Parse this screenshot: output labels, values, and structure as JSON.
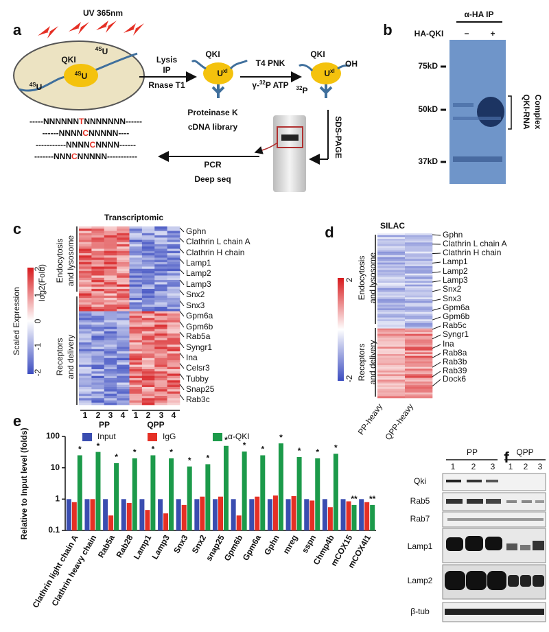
{
  "a": {
    "label": "a",
    "uv": "UV 365nm",
    "cell_qki": "QKI",
    "cell_sup": "4S",
    "cell_u": "U",
    "left_sup": "4S",
    "left_u": "U",
    "right_sup": "4S",
    "right_u": "U",
    "step1": [
      "Lysis",
      "IP",
      "Rnase T1"
    ],
    "qki2": "QKI",
    "u2": "U",
    "xl2": "xl",
    "step2_top": "T4 PNK",
    "step2_gamma": "γ-",
    "step2_sup": "32",
    "step2_rest": "P ATP",
    "qki3": "QKI",
    "oh": "OH",
    "p_sup": "32",
    "p": "P",
    "u3": "U",
    "xl3": "xl",
    "sds": "SDS-PAGE",
    "steps3": [
      "Proteinase K",
      "cDNA library",
      "PCR",
      "Deep seq"
    ],
    "seqs": [
      [
        "-----NNNNNN",
        "T",
        "NNNNNNN------"
      ],
      [
        "------NNNN",
        "C",
        "NNNNN----"
      ],
      [
        "-----------NNNN",
        "C",
        "NNNN------"
      ],
      [
        "-------NNN",
        "C",
        "NNNNN-----------"
      ]
    ]
  },
  "b": {
    "label": "b",
    "title": "α-HA IP",
    "row": "HA-QKI",
    "minus": "−",
    "plus": "+",
    "markers": [
      "75kD",
      "50kD",
      "37kD"
    ],
    "complex": [
      "QKI-RNA",
      "Complex"
    ]
  },
  "c": {
    "label": "c",
    "title": "Transcriptomic",
    "genes": [
      "Gphn",
      "Clathrin L chain A",
      "Clathrin H chain",
      "Lamp1",
      "Lamp2",
      "Lamp3",
      "Snx2",
      "Snx3",
      "Gpm6a",
      "Gpm6b",
      "Rab5a",
      "Syngr1",
      "Ina",
      "Celsr3",
      "Tubby",
      "Snap25",
      "Rab3c"
    ],
    "group1": [
      "Endocytosis",
      "and lysosome"
    ],
    "group2": [
      "Receptors",
      "and delivery"
    ],
    "lanes": [
      "1",
      "2",
      "3",
      "4",
      "1",
      "2",
      "3",
      "4"
    ],
    "conditions": [
      "PP",
      "QPP"
    ],
    "scale_title": "Scaled Expression",
    "scale_unit": "log2(Fold)",
    "scale_ticks": [
      "2",
      "1",
      "0",
      "-1",
      "-2"
    ]
  },
  "d": {
    "label": "d",
    "title": "SILAC",
    "genes": [
      "Gphn",
      "Clathrin L chain A",
      "Clathrin H chain",
      "Lamp1",
      "Lamp2",
      "Lamp3",
      "Snx2",
      "Snx3",
      "Gpm6a",
      "Gpm6b",
      "Rab5c",
      "Syngr1",
      "Ina",
      "Rab8a",
      "Rab3b",
      "Rab39",
      "Dock6"
    ],
    "group1": [
      "Endocytosis",
      "and lysosome"
    ],
    "group2": [
      "Receptors",
      "and delivery"
    ],
    "scale_ticks": [
      "2",
      "-2"
    ],
    "columns": [
      "PP-heavy",
      "QPP-heavy"
    ]
  },
  "chart_data": {
    "type": "bar",
    "label": "e",
    "ylabel": "Relative to Input level (folds)",
    "log": true,
    "ylim": [
      0.1,
      100
    ],
    "yticks": [
      0.1,
      1,
      10,
      100
    ],
    "categories": [
      "Clathrin light chain A",
      "Clathrin heavy chain",
      "Rab5a",
      "Rab28",
      "Lamp1",
      "Lamp3",
      "Snx3",
      "Snx2",
      "snap25",
      "Gpm6b",
      "Gpm6a",
      "Gphn",
      "mreg",
      "sspn",
      "Chmp4b",
      "mCOX15",
      "mCOX4l1"
    ],
    "series": [
      {
        "name": "Input",
        "color": "#3a4db0",
        "values": [
          1,
          1,
          1,
          1,
          1,
          1,
          1,
          1,
          1,
          1,
          1,
          1,
          1,
          1,
          1,
          1,
          1
        ]
      },
      {
        "name": "IgG",
        "color": "#e53025",
        "values": [
          0.8,
          1,
          0.3,
          0.75,
          0.45,
          0.35,
          0.65,
          1.2,
          1.2,
          0.3,
          1.2,
          1.3,
          1.25,
          0.9,
          0.55,
          0.85,
          0.8
        ]
      },
      {
        "name": "α-QKI",
        "color": "#1c9a4a",
        "values": [
          25,
          32,
          14,
          20,
          25,
          20,
          11,
          13,
          50,
          33,
          25,
          60,
          22,
          20,
          28,
          0.65,
          0.65
        ]
      }
    ],
    "annotations": [
      "*",
      "*",
      "*",
      "*",
      "*",
      "*",
      "*",
      "*",
      "*",
      "*",
      "*",
      "*",
      "*",
      "*",
      "*",
      "**",
      "**"
    ]
  },
  "f": {
    "label": "f",
    "groups": [
      "PP",
      "QPP"
    ],
    "lanes": [
      "1",
      "2",
      "3",
      "1",
      "2",
      "3"
    ],
    "rows": [
      "Qki",
      "Rab5",
      "Rab7",
      "Lamp1",
      "Lamp2",
      "β-tub"
    ]
  }
}
